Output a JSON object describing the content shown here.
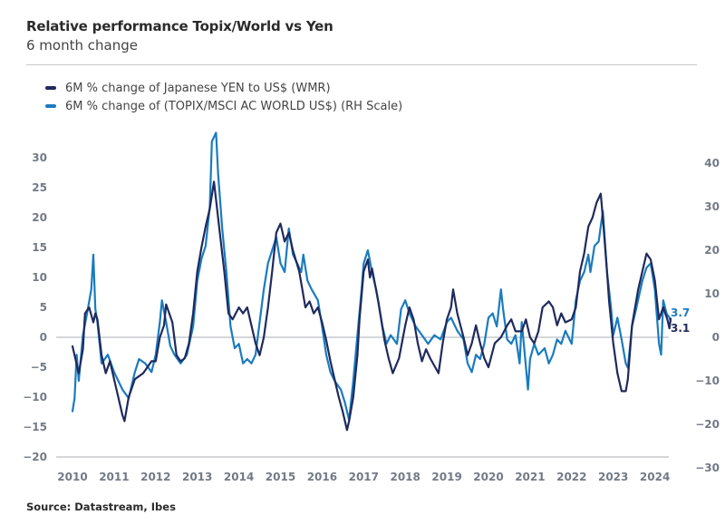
{
  "header": {
    "title": "Relative performance Topix/World vs Yen",
    "subtitle": "6 month change"
  },
  "legend": [
    {
      "label": "6M % change of Japanese YEN to US$ (WMR)",
      "color": "#1f2a5c"
    },
    {
      "label": "6M % change of (TOPIX/MSCI AC WORLD US$) (RH Scale)",
      "color": "#1a7bbf"
    }
  ],
  "source": "Source: Datastream, Ibes",
  "chart_data": {
    "type": "line",
    "title": "Relative performance Topix/World vs Yen",
    "subtitle": "6 month change",
    "xlabel": "",
    "x_ticks": [
      "2010",
      "2011",
      "2012",
      "2013",
      "2014",
      "2015",
      "2016",
      "2017",
      "2018",
      "2019",
      "2020",
      "2021",
      "2022",
      "2023",
      "2024"
    ],
    "xlim": [
      2010,
      2024.4
    ],
    "left_axis": {
      "ticks": [
        "30",
        "25",
        "20",
        "15",
        "10",
        "5",
        "0",
        "-5",
        "-10",
        "-15",
        "-20"
      ],
      "ylim": [
        -20,
        30
      ]
    },
    "right_axis": {
      "ticks": [
        "40",
        "30",
        "20",
        "10",
        "0",
        "-10",
        "-20",
        "-30"
      ],
      "ylim": [
        -30,
        40
      ]
    },
    "zero_line": true,
    "grid": false,
    "legend_position": "top-left",
    "series": [
      {
        "name": "6M % change of Japanese YEN to US$ (WMR)",
        "axis": "left",
        "color": "#1f2a5c",
        "end_label": "3.1",
        "points": [
          [
            2010.0,
            -1.5
          ],
          [
            2010.05,
            -3
          ],
          [
            2010.15,
            -6
          ],
          [
            2010.25,
            -2
          ],
          [
            2010.3,
            4
          ],
          [
            2010.4,
            5
          ],
          [
            2010.5,
            2.5
          ],
          [
            2010.55,
            4
          ],
          [
            2010.6,
            3
          ],
          [
            2010.7,
            -3
          ],
          [
            2010.8,
            -6
          ],
          [
            2010.9,
            -4
          ],
          [
            2011.0,
            -7
          ],
          [
            2011.1,
            -10
          ],
          [
            2011.2,
            -13
          ],
          [
            2011.25,
            -14
          ],
          [
            2011.35,
            -10
          ],
          [
            2011.5,
            -7
          ],
          [
            2011.7,
            -6
          ],
          [
            2011.9,
            -4
          ],
          [
            2012.0,
            -4
          ],
          [
            2012.1,
            0
          ],
          [
            2012.2,
            2
          ],
          [
            2012.25,
            5.5
          ],
          [
            2012.4,
            2.5
          ],
          [
            2012.5,
            -3
          ],
          [
            2012.6,
            -4
          ],
          [
            2012.7,
            -3.5
          ],
          [
            2012.8,
            -1
          ],
          [
            2012.9,
            4
          ],
          [
            2013.0,
            11
          ],
          [
            2013.1,
            15
          ],
          [
            2013.2,
            18.5
          ],
          [
            2013.3,
            21.5
          ],
          [
            2013.4,
            26
          ],
          [
            2013.45,
            23
          ],
          [
            2013.55,
            17
          ],
          [
            2013.65,
            11
          ],
          [
            2013.75,
            4
          ],
          [
            2013.85,
            3
          ],
          [
            2014.0,
            5
          ],
          [
            2014.1,
            4
          ],
          [
            2014.2,
            5
          ],
          [
            2014.3,
            2
          ],
          [
            2014.4,
            -1
          ],
          [
            2014.5,
            -3
          ],
          [
            2014.6,
            0
          ],
          [
            2014.7,
            5
          ],
          [
            2014.8,
            11
          ],
          [
            2014.9,
            17.5
          ],
          [
            2015.0,
            19
          ],
          [
            2015.1,
            16
          ],
          [
            2015.2,
            17.5
          ],
          [
            2015.3,
            14.5
          ],
          [
            2015.45,
            11
          ],
          [
            2015.6,
            5
          ],
          [
            2015.7,
            6
          ],
          [
            2015.8,
            4
          ],
          [
            2015.9,
            5
          ],
          [
            2016.0,
            2.5
          ],
          [
            2016.1,
            -0.5
          ],
          [
            2016.2,
            -4
          ],
          [
            2016.3,
            -7
          ],
          [
            2016.4,
            -10
          ],
          [
            2016.5,
            -12.5
          ],
          [
            2016.6,
            -15.5
          ],
          [
            2016.65,
            -14
          ],
          [
            2016.75,
            -10
          ],
          [
            2016.85,
            -3
          ],
          [
            2016.9,
            3
          ],
          [
            2017.0,
            11
          ],
          [
            2017.1,
            13
          ],
          [
            2017.15,
            10
          ],
          [
            2017.2,
            11.5
          ],
          [
            2017.35,
            6
          ],
          [
            2017.5,
            -0.5
          ],
          [
            2017.6,
            -3.5
          ],
          [
            2017.7,
            -6
          ],
          [
            2017.85,
            -3.5
          ],
          [
            2018.0,
            2
          ],
          [
            2018.1,
            5
          ],
          [
            2018.2,
            3
          ],
          [
            2018.3,
            -1
          ],
          [
            2018.4,
            -4
          ],
          [
            2018.5,
            -2
          ],
          [
            2018.6,
            -3.5
          ],
          [
            2018.8,
            -6
          ],
          [
            2018.9,
            -1
          ],
          [
            2019.0,
            3
          ],
          [
            2019.1,
            5
          ],
          [
            2019.15,
            8
          ],
          [
            2019.25,
            4
          ],
          [
            2019.4,
            0
          ],
          [
            2019.5,
            -3
          ],
          [
            2019.6,
            -1
          ],
          [
            2019.7,
            2
          ],
          [
            2019.8,
            -1
          ],
          [
            2019.9,
            -3.5
          ],
          [
            2020.0,
            -5
          ],
          [
            2020.15,
            -1
          ],
          [
            2020.3,
            0
          ],
          [
            2020.45,
            2
          ],
          [
            2020.55,
            3
          ],
          [
            2020.65,
            1
          ],
          [
            2020.8,
            1
          ],
          [
            2020.9,
            3
          ],
          [
            2021.0,
            0
          ],
          [
            2021.1,
            -1
          ],
          [
            2021.2,
            1
          ],
          [
            2021.3,
            5
          ],
          [
            2021.45,
            6
          ],
          [
            2021.55,
            5
          ],
          [
            2021.65,
            2
          ],
          [
            2021.75,
            4
          ],
          [
            2021.85,
            2.5
          ],
          [
            2022.0,
            3
          ],
          [
            2022.1,
            5
          ],
          [
            2022.2,
            11
          ],
          [
            2022.3,
            14
          ],
          [
            2022.4,
            18.5
          ],
          [
            2022.5,
            20
          ],
          [
            2022.6,
            22.5
          ],
          [
            2022.7,
            24
          ],
          [
            2022.75,
            20
          ],
          [
            2022.85,
            11
          ],
          [
            2022.9,
            6
          ],
          [
            2023.0,
            -1
          ],
          [
            2023.1,
            -6
          ],
          [
            2023.2,
            -9
          ],
          [
            2023.3,
            -9
          ],
          [
            2023.35,
            -7
          ],
          [
            2023.45,
            2
          ],
          [
            2023.6,
            8
          ],
          [
            2023.7,
            11
          ],
          [
            2023.8,
            14
          ],
          [
            2023.9,
            13
          ],
          [
            2024.0,
            9.5
          ],
          [
            2024.1,
            3
          ],
          [
            2024.2,
            5
          ],
          [
            2024.3,
            3
          ],
          [
            2024.35,
            1.5
          ],
          [
            2024.38,
            3.1
          ]
        ]
      },
      {
        "name": "6M % change of (TOPIX/MSCI AC WORLD US$) (RH Scale)",
        "axis": "right",
        "color": "#1a7bbf",
        "end_label": "3.7",
        "points": [
          [
            2010.0,
            -17
          ],
          [
            2010.05,
            -14
          ],
          [
            2010.1,
            -4
          ],
          [
            2010.15,
            -10
          ],
          [
            2010.25,
            0.5
          ],
          [
            2010.35,
            5.5
          ],
          [
            2010.45,
            11
          ],
          [
            2010.5,
            19
          ],
          [
            2010.55,
            6.5
          ],
          [
            2010.6,
            3.5
          ],
          [
            2010.7,
            -6
          ],
          [
            2010.85,
            -4
          ],
          [
            2011.0,
            -8
          ],
          [
            2011.1,
            -10
          ],
          [
            2011.2,
            -12
          ],
          [
            2011.35,
            -14
          ],
          [
            2011.5,
            -8
          ],
          [
            2011.6,
            -5
          ],
          [
            2011.75,
            -6
          ],
          [
            2011.9,
            -8
          ],
          [
            2012.0,
            -4
          ],
          [
            2012.1,
            3.5
          ],
          [
            2012.15,
            8.5
          ],
          [
            2012.25,
            3.5
          ],
          [
            2012.35,
            -2
          ],
          [
            2012.45,
            -4
          ],
          [
            2012.6,
            -6
          ],
          [
            2012.75,
            -4
          ],
          [
            2012.9,
            2.5
          ],
          [
            2013.0,
            13
          ],
          [
            2013.1,
            18
          ],
          [
            2013.2,
            21
          ],
          [
            2013.3,
            30
          ],
          [
            2013.35,
            45
          ],
          [
            2013.45,
            47
          ],
          [
            2013.5,
            37.5
          ],
          [
            2013.6,
            25
          ],
          [
            2013.7,
            15
          ],
          [
            2013.8,
            2.5
          ],
          [
            2013.9,
            -2.5
          ],
          [
            2014.0,
            -1.5
          ],
          [
            2014.1,
            -6
          ],
          [
            2014.2,
            -5
          ],
          [
            2014.3,
            -6
          ],
          [
            2014.4,
            -4
          ],
          [
            2014.5,
            3.5
          ],
          [
            2014.6,
            11
          ],
          [
            2014.7,
            17
          ],
          [
            2014.8,
            20
          ],
          [
            2014.9,
            23
          ],
          [
            2015.0,
            17
          ],
          [
            2015.1,
            15
          ],
          [
            2015.2,
            25
          ],
          [
            2015.3,
            19
          ],
          [
            2015.4,
            17
          ],
          [
            2015.5,
            15
          ],
          [
            2015.55,
            19
          ],
          [
            2015.65,
            13
          ],
          [
            2015.75,
            11
          ],
          [
            2015.9,
            8.5
          ],
          [
            2016.0,
            2.5
          ],
          [
            2016.1,
            -4
          ],
          [
            2016.2,
            -8
          ],
          [
            2016.3,
            -10
          ],
          [
            2016.45,
            -12
          ],
          [
            2016.55,
            -15
          ],
          [
            2016.65,
            -19
          ],
          [
            2016.75,
            -10
          ],
          [
            2016.85,
            0.5
          ],
          [
            2016.95,
            11
          ],
          [
            2017.0,
            17
          ],
          [
            2017.1,
            20
          ],
          [
            2017.2,
            15
          ],
          [
            2017.3,
            11
          ],
          [
            2017.45,
            2.5
          ],
          [
            2017.55,
            -1.5
          ],
          [
            2017.65,
            0.5
          ],
          [
            2017.8,
            -1.5
          ],
          [
            2017.9,
            6.5
          ],
          [
            2018.0,
            8.5
          ],
          [
            2018.1,
            5.5
          ],
          [
            2018.25,
            2.5
          ],
          [
            2018.4,
            0.5
          ],
          [
            2018.55,
            -1.5
          ],
          [
            2018.7,
            0.5
          ],
          [
            2018.85,
            -0.5
          ],
          [
            2019.0,
            3.5
          ],
          [
            2019.1,
            4.5
          ],
          [
            2019.25,
            1.5
          ],
          [
            2019.4,
            -0.5
          ],
          [
            2019.5,
            -6
          ],
          [
            2019.6,
            -8
          ],
          [
            2019.7,
            -4
          ],
          [
            2019.8,
            -5
          ],
          [
            2019.9,
            -1.5
          ],
          [
            2020.0,
            4.5
          ],
          [
            2020.1,
            5.5
          ],
          [
            2020.2,
            2.5
          ],
          [
            2020.3,
            11
          ],
          [
            2020.35,
            6.5
          ],
          [
            2020.45,
            -0.5
          ],
          [
            2020.55,
            -1.5
          ],
          [
            2020.65,
            0.5
          ],
          [
            2020.75,
            -6
          ],
          [
            2020.8,
            3.5
          ],
          [
            2020.85,
            -1.5
          ],
          [
            2020.95,
            -12
          ],
          [
            2021.0,
            -5
          ],
          [
            2021.1,
            -1.5
          ],
          [
            2021.2,
            -4
          ],
          [
            2021.35,
            -2.5
          ],
          [
            2021.45,
            -6
          ],
          [
            2021.55,
            -4
          ],
          [
            2021.65,
            -0.5
          ],
          [
            2021.75,
            -1.5
          ],
          [
            2021.85,
            1.5
          ],
          [
            2022.0,
            -1.5
          ],
          [
            2022.1,
            8.5
          ],
          [
            2022.2,
            13
          ],
          [
            2022.3,
            15
          ],
          [
            2022.4,
            19
          ],
          [
            2022.45,
            15
          ],
          [
            2022.55,
            21
          ],
          [
            2022.65,
            22
          ],
          [
            2022.75,
            29
          ],
          [
            2022.85,
            15
          ],
          [
            2022.95,
            6.5
          ],
          [
            2023.0,
            0.5
          ],
          [
            2023.1,
            4.5
          ],
          [
            2023.2,
            -0.5
          ],
          [
            2023.3,
            -6
          ],
          [
            2023.35,
            -7
          ],
          [
            2023.45,
            2.5
          ],
          [
            2023.55,
            6.5
          ],
          [
            2023.7,
            13
          ],
          [
            2023.8,
            16
          ],
          [
            2023.9,
            17
          ],
          [
            2024.0,
            11
          ],
          [
            2024.1,
            -1.5
          ],
          [
            2024.15,
            -4
          ],
          [
            2024.2,
            8.5
          ],
          [
            2024.28,
            5.5
          ],
          [
            2024.35,
            4.5
          ],
          [
            2024.38,
            3.7
          ]
        ]
      }
    ]
  }
}
